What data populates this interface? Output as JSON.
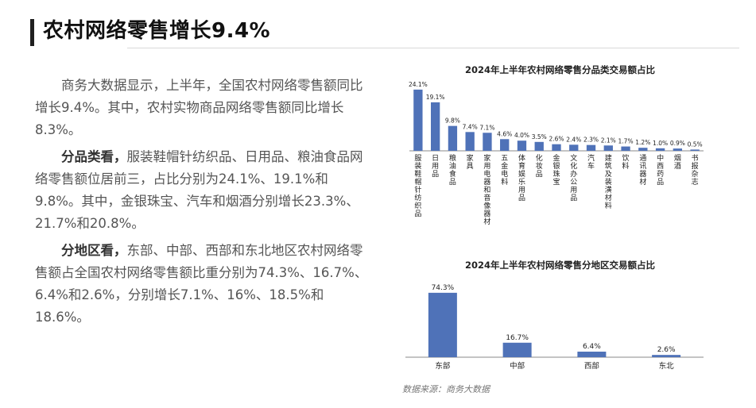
{
  "page": {
    "title": "农村网络零售增长9.4%",
    "source": "数据来源：商务大数据"
  },
  "text": {
    "para1": "商务大数据显示，上半年，全国农村网络零售额同比增长9.4%。其中，农村实物商品网络零售额同比增长8.3%。",
    "para2_lead": "分品类看，",
    "para2_body": "服装鞋帽针纺织品、日用品、粮油食品网络零售额位居前三，占比分别为24.1%、19.1%和9.8%。其中，金银珠宝、汽车和烟酒分别增长23.3%、21.7%和20.8%。",
    "para3_lead": "分地区看，",
    "para3_body": "东部、中部、西部和东北地区农村网络零售额占全国农村网络零售额比重分别为74.3%、16.7%、6.4%和2.6%，分别增长7.1%、16%、18.5%和18.6%。"
  },
  "colors": {
    "bar": "#4f72b8",
    "axis": "#888888"
  },
  "chart_data": [
    {
      "type": "bar",
      "title": "2024年上半年农村网络零售分品类交易额占比",
      "categories": [
        "服装鞋帽针纺织品",
        "日用品",
        "粮油食品",
        "家具",
        "家用电器和音像器材",
        "五金电料",
        "体育娱乐用品",
        "化妆品",
        "金银珠宝",
        "文化办公用品",
        "汽车",
        "建筑及装潢材料",
        "饮料",
        "通讯器材",
        "中西药品",
        "烟酒",
        "书报杂志"
      ],
      "values": [
        24.1,
        19.1,
        9.8,
        7.4,
        7.1,
        4.6,
        4.0,
        3.5,
        2.6,
        2.4,
        2.3,
        2.1,
        1.7,
        1.2,
        1.0,
        0.9,
        0.5
      ],
      "data_labels": [
        "24.1%",
        "19.1%",
        "9.8%",
        "7.4%",
        "7.1%",
        "4.6%",
        "4.0%",
        "3.5%",
        "2.6%",
        "2.4%",
        "2.3%",
        "2.1%",
        "1.7%",
        "1.2%",
        "1.0%",
        "0.9%",
        "0.5%"
      ],
      "ylim": [
        0,
        25
      ],
      "grid": false
    },
    {
      "type": "bar",
      "title": "2024年上半年农村网络零售分地区交易额占比",
      "categories": [
        "东部",
        "中部",
        "西部",
        "东北"
      ],
      "values": [
        74.3,
        16.7,
        6.4,
        2.6
      ],
      "data_labels": [
        "74.3%",
        "16.7%",
        "6.4%",
        "2.6%"
      ],
      "ylim": [
        0,
        76
      ],
      "grid": false
    }
  ]
}
